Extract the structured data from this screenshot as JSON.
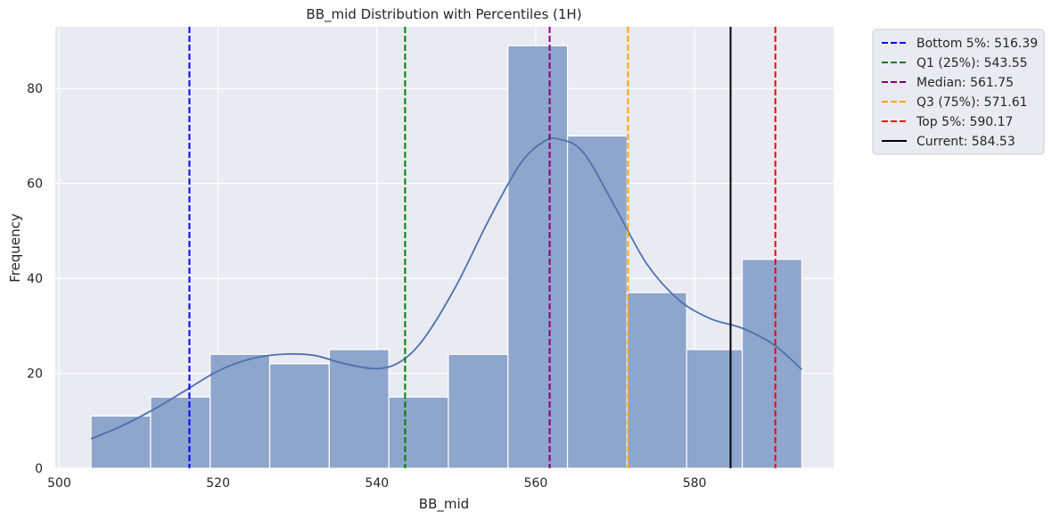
{
  "chart_data": {
    "type": "histogram",
    "title": "BB_mid Distribution with Percentiles (1H)",
    "xlabel": "BB_mid",
    "ylabel": "Frequency",
    "xlim": [
      499.5,
      597.5
    ],
    "ylim": [
      0,
      93
    ],
    "xticks": [
      500,
      520,
      540,
      560,
      580
    ],
    "yticks": [
      0,
      20,
      40,
      60,
      80
    ],
    "grid": true,
    "legend_position": "outside-top-right",
    "bars": [
      {
        "x0": 504.0,
        "x1": 511.5,
        "count": 11
      },
      {
        "x0": 511.5,
        "x1": 519.0,
        "count": 15
      },
      {
        "x0": 519.0,
        "x1": 526.5,
        "count": 24
      },
      {
        "x0": 526.5,
        "x1": 534.0,
        "count": 22
      },
      {
        "x0": 534.0,
        "x1": 541.5,
        "count": 25
      },
      {
        "x0": 541.5,
        "x1": 549.0,
        "count": 15
      },
      {
        "x0": 549.0,
        "x1": 556.5,
        "count": 24
      },
      {
        "x0": 556.5,
        "x1": 564.0,
        "count": 89
      },
      {
        "x0": 564.0,
        "x1": 571.5,
        "count": 70
      },
      {
        "x0": 571.5,
        "x1": 579.0,
        "count": 37
      },
      {
        "x0": 579.0,
        "x1": 586.0,
        "count": 25
      },
      {
        "x0": 586.0,
        "x1": 593.5,
        "count": 44
      }
    ],
    "kde": {
      "x": [
        504,
        508,
        512,
        516,
        520,
        524,
        528,
        532,
        536,
        540,
        543,
        546,
        550,
        554,
        558,
        561,
        563,
        566,
        570,
        574,
        578,
        582,
        586,
        590,
        593.5
      ],
      "y": [
        6.2,
        9.0,
        12.5,
        16.5,
        20.5,
        23.0,
        24.0,
        23.8,
        22.0,
        21.0,
        22.5,
        27.5,
        38.5,
        52.0,
        64.0,
        68.8,
        69.3,
        66.5,
        55.0,
        43.0,
        35.5,
        31.5,
        29.5,
        26.0,
        20.8
      ],
      "color": "#4c72b0"
    },
    "bar_color": "#8ea5cc",
    "series": [
      {
        "name": "Bottom 5%: 516.39",
        "value": 516.39,
        "color": "#0000ff",
        "style": "dashed"
      },
      {
        "name": "Q1 (25%): 543.55",
        "value": 543.55,
        "color": "#008000",
        "style": "dashed"
      },
      {
        "name": "Median: 561.75",
        "value": 561.75,
        "color": "#800080",
        "style": "dashed"
      },
      {
        "name": "Q3 (75%): 571.61",
        "value": 571.61,
        "color": "#ffa500",
        "style": "dashed"
      },
      {
        "name": "Top 5%: 590.17",
        "value": 590.17,
        "color": "#ff0000",
        "style": "dashed"
      },
      {
        "name": "Current: 584.53",
        "value": 584.53,
        "color": "#000000",
        "style": "solid"
      }
    ]
  }
}
